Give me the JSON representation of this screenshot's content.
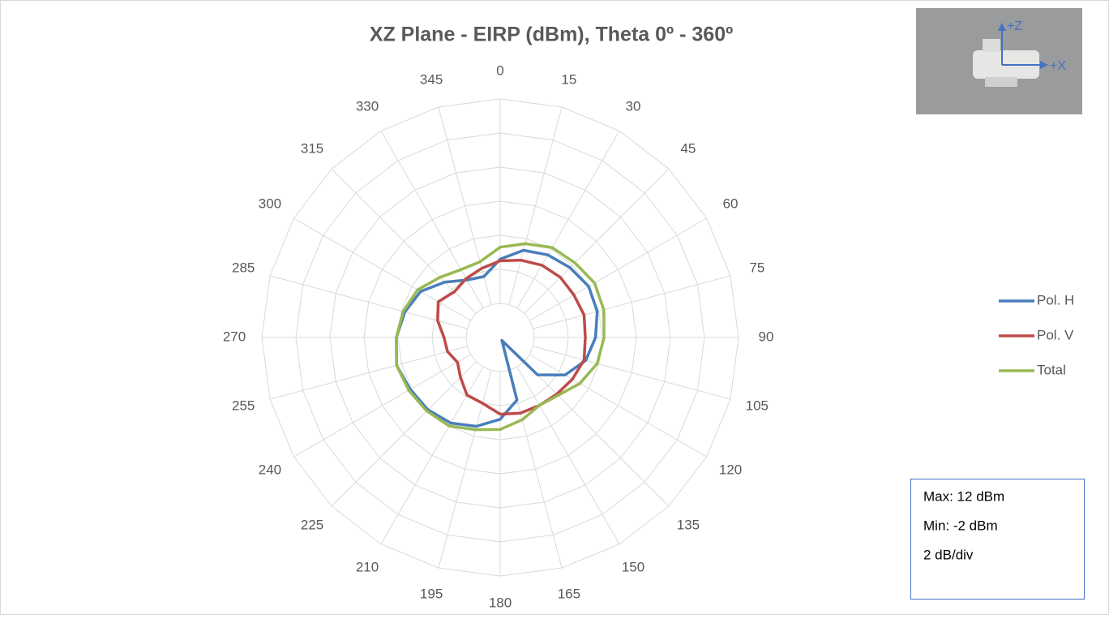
{
  "chart_data": {
    "type": "radar",
    "title": "XZ Plane - EIRP (dBm), Theta 0º - 360º",
    "categories": [
      "0",
      "15",
      "30",
      "45",
      "60",
      "75",
      "90",
      "105",
      "120",
      "135",
      "150",
      "165",
      "180",
      "195",
      "210",
      "225",
      "240",
      "255",
      "270",
      "285",
      "300",
      "315",
      "330",
      "345"
    ],
    "series": [
      {
        "name": "Pol. H",
        "color": "#4a7ebb",
        "values": [
          2.6,
          3.3,
          3.6,
          3.8,
          4.0,
          3.9,
          3.6,
          3.2,
          2.4,
          1.1,
          -1.8,
          1.8,
          2.8,
          3.4,
          3.8,
          4.0,
          4.1,
          4.3,
          4.1,
          3.8,
          3.4,
          2.6,
          1.9,
          1.7
        ]
      },
      {
        "name": "Pol. V",
        "color": "#be4b48",
        "values": [
          2.5,
          2.7,
          2.9,
          3.0,
          3.0,
          3.1,
          3.0,
          3.1,
          2.9,
          2.7,
          2.6,
          2.6,
          2.5,
          2.0,
          1.9,
          1.3,
          0.9,
          1.2,
          1.3,
          1.8,
          2.2,
          1.8,
          2.0,
          2.2
        ]
      },
      {
        "name": "Total",
        "color": "#98b954",
        "values": [
          3.3,
          3.7,
          4.1,
          4.2,
          4.4,
          4.3,
          4.1,
          3.9,
          3.4,
          2.8,
          2.6,
          3.0,
          3.4,
          3.6,
          4.0,
          4.1,
          4.2,
          4.3,
          4.1,
          3.9,
          3.6,
          3.0,
          2.6,
          2.6
        ]
      }
    ],
    "rlim": [
      -2,
      12
    ],
    "rticks": [
      -2,
      0,
      2,
      4,
      6,
      8,
      10,
      12
    ],
    "grid": true,
    "legend": "right",
    "annotations": [
      "Max: 12 dBm",
      "Min: -2 dBm",
      "2 dB/div"
    ],
    "inset_labels": [
      "+Z",
      "+X"
    ]
  }
}
